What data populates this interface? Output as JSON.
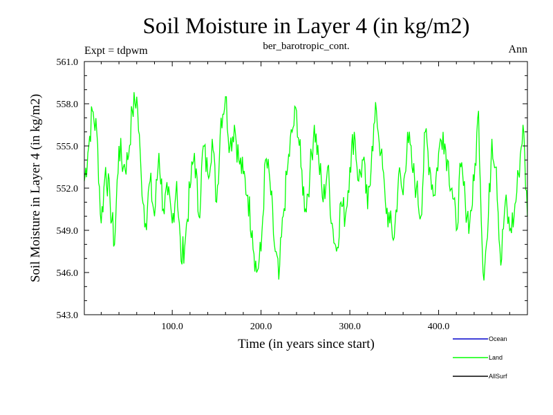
{
  "chart_data": {
    "type": "line",
    "title": "Soil Moisture in Layer 4 (in kg/m2)",
    "subtitle": "ber_barotropic_cont.",
    "expt_label": "Expt = tdpwm",
    "season_label": "Ann",
    "xlabel": "Time (in years since start)",
    "ylabel": "Soil Moisture in Layer 4 (in kg/m2)",
    "xlim": [
      1,
      500
    ],
    "ylim": [
      543.0,
      561.0
    ],
    "x_ticks": [
      100,
      200,
      300,
      400
    ],
    "x_tick_labels": [
      "100.0",
      "200.0",
      "300.0",
      "400.0"
    ],
    "y_ticks": [
      543,
      546,
      549,
      552,
      555,
      558,
      561
    ],
    "y_tick_labels": [
      "543.0",
      "546.0",
      "549.0",
      "552.0",
      "555.0",
      "558.0",
      "561.0"
    ],
    "legend": [
      {
        "name": "Ocean",
        "color": "#0000cc"
      },
      {
        "name": "Land",
        "color": "#00ff00"
      },
      {
        "name": "AllSurf",
        "color": "#000000"
      }
    ],
    "series": [
      {
        "name": "Land",
        "color": "#00ff00",
        "x": [
          1,
          5,
          10,
          15,
          20,
          25,
          30,
          35,
          40,
          45,
          50,
          55,
          60,
          65,
          70,
          75,
          80,
          85,
          90,
          95,
          100,
          105,
          110,
          115,
          120,
          125,
          130,
          135,
          140,
          145,
          150,
          155,
          160,
          165,
          170,
          175,
          180,
          185,
          190,
          195,
          200,
          205,
          210,
          215,
          220,
          225,
          230,
          235,
          240,
          245,
          250,
          255,
          260,
          265,
          270,
          275,
          280,
          285,
          290,
          295,
          300,
          305,
          310,
          315,
          320,
          325,
          330,
          335,
          340,
          345,
          350,
          355,
          360,
          365,
          370,
          375,
          380,
          385,
          390,
          395,
          400,
          405,
          410,
          415,
          420,
          425,
          430,
          435,
          440,
          445,
          450,
          455,
          460,
          465,
          470,
          475,
          480,
          485,
          490,
          495,
          500
        ],
        "values": [
          552.5,
          554.5,
          557.5,
          556.0,
          549.5,
          553.5,
          551.0,
          548.0,
          555.0,
          553.5,
          554.0,
          557.5,
          558.5,
          553.0,
          549.5,
          552.5,
          550.0,
          554.5,
          550.5,
          551.5,
          549.5,
          552.5,
          546.8,
          548.5,
          552.0,
          554.5,
          550.0,
          555.0,
          553.0,
          555.5,
          551.0,
          557.0,
          558.5,
          555.0,
          556.5,
          554.0,
          553.0,
          551.5,
          549.0,
          546.0,
          547.5,
          554.0,
          552.5,
          548.0,
          545.5,
          550.0,
          553.5,
          556.0,
          557.5,
          553.5,
          550.5,
          553.0,
          556.5,
          554.0,
          551.0,
          553.5,
          549.5,
          547.5,
          551.0,
          550.0,
          553.5,
          556.0,
          552.5,
          554.0,
          550.5,
          555.0,
          557.5,
          554.5,
          551.0,
          549.5,
          548.5,
          553.0,
          551.5,
          556.0,
          553.5,
          552.0,
          550.0,
          556.0,
          553.5,
          551.5,
          554.5,
          556.0,
          554.0,
          552.0,
          549.0,
          553.5,
          551.0,
          549.5,
          552.5,
          557.5,
          546.0,
          548.5,
          555.5,
          553.5,
          546.5,
          551.0,
          549.0,
          550.0,
          553.0,
          556.5,
          550.0
        ]
      }
    ]
  }
}
